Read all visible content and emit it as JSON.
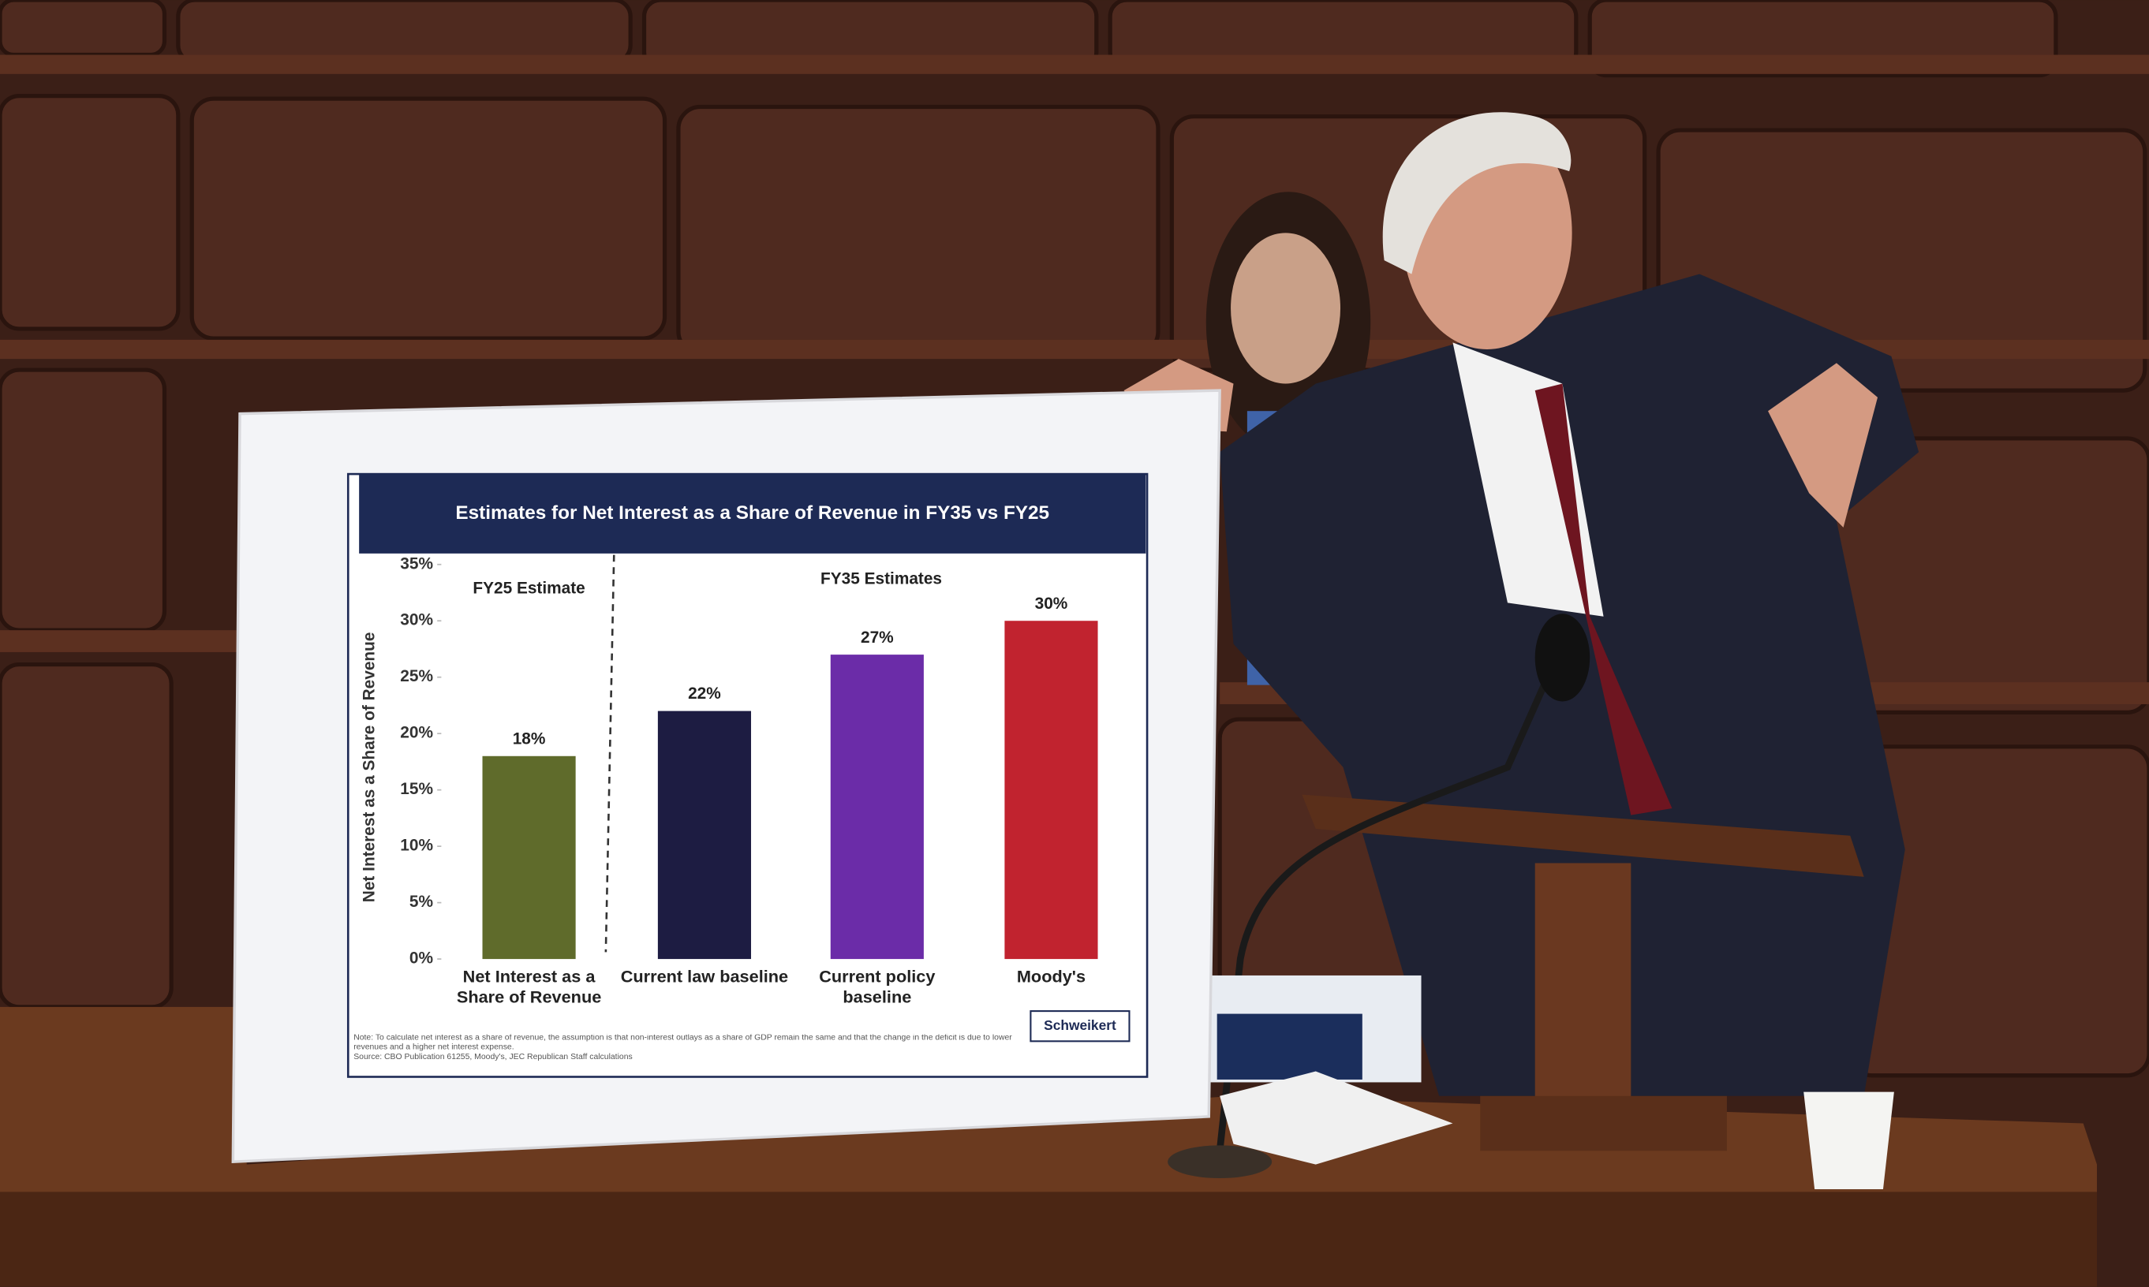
{
  "chart_data": {
    "type": "bar",
    "title": "Estimates for Net Interest as a Share of Revenue in FY35 vs FY25",
    "y_label": "Net Interest as a Share of Revenue",
    "categories": [
      "Net Interest as a Share of Revenue",
      "Current law baseline",
      "Current policy baseline",
      "Moody's"
    ],
    "values": [
      18,
      22,
      27,
      30
    ],
    "value_labels": [
      "18%",
      "22%",
      "27%",
      "30%"
    ],
    "colors": [
      "#5f6b2b",
      "#1d1c42",
      "#6b2ca8",
      "#c1232f"
    ],
    "ylim": [
      0,
      35
    ],
    "yticks": [
      {
        "value": 0,
        "label": "0%"
      },
      {
        "value": 5,
        "label": "5%"
      },
      {
        "value": 10,
        "label": "10%"
      },
      {
        "value": 15,
        "label": "15%"
      },
      {
        "value": 20,
        "label": "20%"
      },
      {
        "value": 25,
        "label": "25%"
      },
      {
        "value": 30,
        "label": "30%"
      },
      {
        "value": 35,
        "label": "35%"
      }
    ],
    "annotations": [
      "FY25 Estimate",
      "FY35 Estimates"
    ],
    "note": "Note: To calculate net interest as a share of revenue, the assumption is that non-interest outlays as a share of GDP remain the same and that the change in the deficit is due to lower revenues and a higher net interest expense.",
    "source": "Source: CBO Publication 61255, Moody's, JEC Republican Staff calculations",
    "logo": "Schweikert"
  }
}
